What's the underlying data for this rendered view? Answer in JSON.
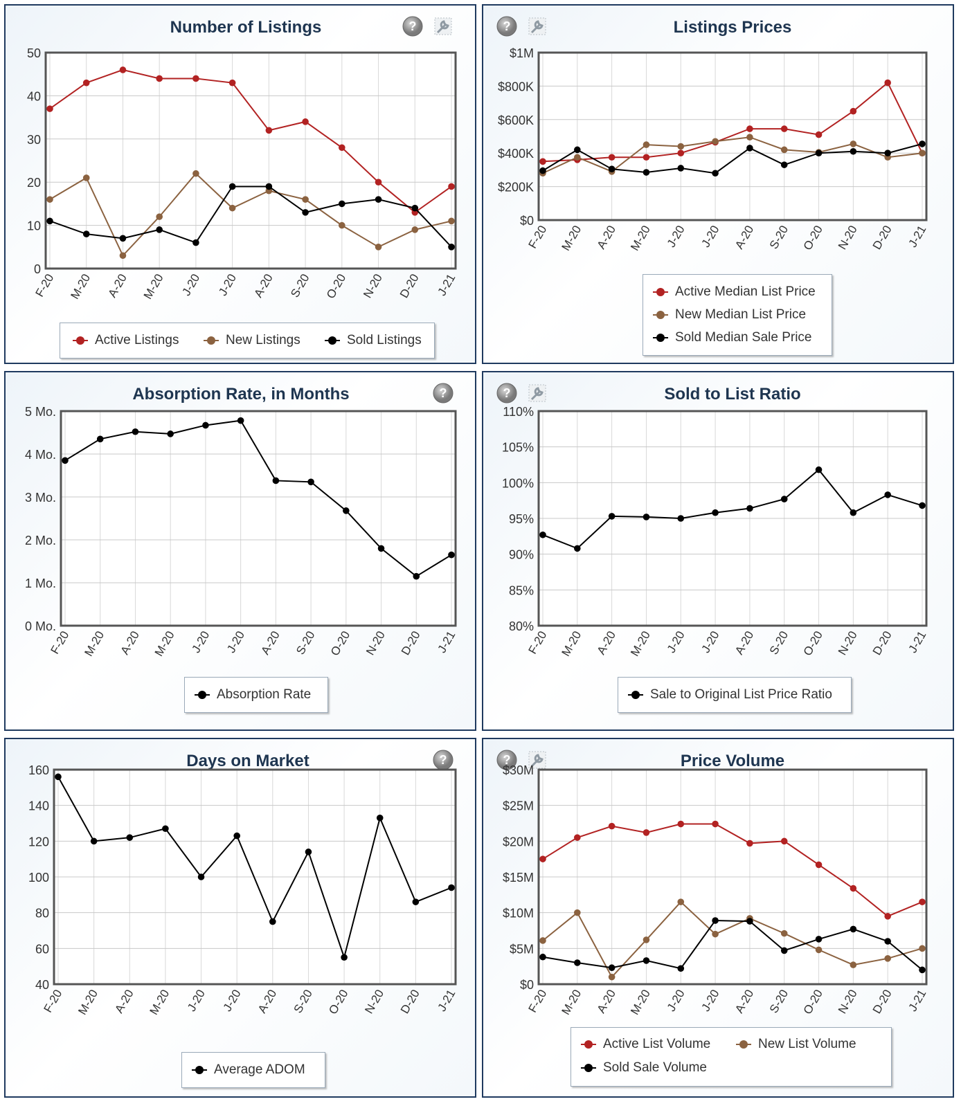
{
  "charts": {
    "listings": {
      "title": "Number of Listings",
      "chart_data": {
        "type": "line",
        "title": "Number of Listings",
        "categories": [
          "F-20",
          "M-20",
          "A-20",
          "M-20",
          "J-20",
          "J-20",
          "A-20",
          "S-20",
          "O-20",
          "N-20",
          "D-20",
          "J-21"
        ],
        "ylim": [
          0,
          50
        ],
        "yticks": [
          0,
          10,
          20,
          30,
          40,
          50
        ],
        "ytick_labels": [
          "0",
          "10",
          "20",
          "30",
          "40",
          "50"
        ],
        "grid": true,
        "legend": "bottom",
        "series": [
          {
            "name": "Active Listings",
            "color": "#b22222",
            "values": [
              37,
              43,
              46,
              44,
              44,
              43,
              32,
              34,
              28,
              20,
              13,
              19
            ]
          },
          {
            "name": "New Listings",
            "color": "#8b6240",
            "values": [
              16,
              21,
              3,
              12,
              22,
              14,
              18,
              16,
              10,
              5,
              9,
              11
            ]
          },
          {
            "name": "Sold Listings",
            "color": "#000000",
            "values": [
              11,
              8,
              7,
              9,
              6,
              19,
              19,
              13,
              15,
              16,
              14,
              5
            ]
          }
        ]
      }
    },
    "prices": {
      "title": "Listings Prices",
      "chart_data": {
        "type": "line",
        "title": "Listings Prices",
        "categories": [
          "F-20",
          "M-20",
          "A-20",
          "M-20",
          "J-20",
          "J-20",
          "A-20",
          "S-20",
          "O-20",
          "N-20",
          "D-20",
          "J-21"
        ],
        "ylim": [
          0,
          1000000
        ],
        "yticks": [
          0,
          200000,
          400000,
          600000,
          800000,
          1000000
        ],
        "ytick_labels": [
          "$0",
          "$200K",
          "$400K",
          "$600K",
          "$800K",
          "$1M"
        ],
        "grid": true,
        "legend": "bottom",
        "series": [
          {
            "name": "Active Median List Price",
            "color": "#b22222",
            "values": [
              350000,
              360000,
              375000,
              375000,
              400000,
              465000,
              545000,
              545000,
              510000,
              650000,
              820000,
              400000
            ]
          },
          {
            "name": "New Median List Price",
            "color": "#8b6240",
            "values": [
              280000,
              375000,
              290000,
              450000,
              440000,
              470000,
              495000,
              420000,
              405000,
              455000,
              375000,
              400000
            ]
          },
          {
            "name": "Sold Median Sale Price",
            "color": "#000000",
            "values": [
              295000,
              420000,
              305000,
              285000,
              310000,
              280000,
              430000,
              330000,
              400000,
              410000,
              400000,
              455000
            ]
          }
        ]
      }
    },
    "absorption": {
      "title": "Absorption Rate, in Months",
      "chart_data": {
        "type": "line",
        "title": "Absorption Rate, in Months",
        "categories": [
          "F-20",
          "M-20",
          "A-20",
          "M-20",
          "J-20",
          "J-20",
          "A-20",
          "S-20",
          "O-20",
          "N-20",
          "D-20",
          "J-21"
        ],
        "ylim": [
          0,
          5
        ],
        "yticks": [
          0,
          1,
          2,
          3,
          4,
          5
        ],
        "ytick_labels": [
          "0 Mo.",
          "1 Mo.",
          "2 Mo.",
          "3 Mo.",
          "4 Mo.",
          "5 Mo."
        ],
        "grid": true,
        "legend": "bottom",
        "series": [
          {
            "name": "Absorption Rate",
            "color": "#000000",
            "values": [
              3.85,
              4.35,
              4.52,
              4.47,
              4.67,
              4.78,
              3.38,
              3.35,
              2.68,
              1.8,
              1.15,
              1.65
            ]
          }
        ]
      }
    },
    "ratio": {
      "title": "Sold to List Ratio",
      "chart_data": {
        "type": "line",
        "title": "Sold to List Ratio",
        "categories": [
          "F-20",
          "M-20",
          "A-20",
          "M-20",
          "J-20",
          "J-20",
          "A-20",
          "S-20",
          "O-20",
          "N-20",
          "D-20",
          "J-21"
        ],
        "ylim": [
          80,
          110
        ],
        "yticks": [
          80,
          85,
          90,
          95,
          100,
          105,
          110
        ],
        "ytick_labels": [
          "80%",
          "85%",
          "90%",
          "95%",
          "100%",
          "105%",
          "110%"
        ],
        "grid": true,
        "legend": "bottom",
        "series": [
          {
            "name": "Sale to Original List Price Ratio",
            "color": "#000000",
            "values": [
              92.7,
              90.8,
              95.3,
              95.2,
              95.0,
              95.8,
              96.4,
              97.7,
              101.8,
              95.8,
              98.3,
              96.8
            ]
          }
        ]
      }
    },
    "dom": {
      "title": "Days on Market",
      "chart_data": {
        "type": "line",
        "title": "Days on Market",
        "categories": [
          "F-20",
          "M-20",
          "A-20",
          "M-20",
          "J-20",
          "J-20",
          "A-20",
          "S-20",
          "O-20",
          "N-20",
          "D-20",
          "J-21"
        ],
        "ylim": [
          40,
          160
        ],
        "yticks": [
          40,
          60,
          80,
          100,
          120,
          140,
          160
        ],
        "ytick_labels": [
          "40",
          "60",
          "80",
          "100",
          "120",
          "140",
          "160"
        ],
        "grid": true,
        "legend": "bottom",
        "series": [
          {
            "name": "Average ADOM",
            "color": "#000000",
            "values": [
              156,
              120,
              122,
              127,
              100,
              123,
              75,
              114,
              55,
              133,
              86,
              94
            ]
          }
        ]
      }
    },
    "volume": {
      "title": "Price Volume",
      "chart_data": {
        "type": "line",
        "title": "Price Volume",
        "categories": [
          "F-20",
          "M-20",
          "A-20",
          "M-20",
          "J-20",
          "J-20",
          "A-20",
          "S-20",
          "O-20",
          "N-20",
          "D-20",
          "J-21"
        ],
        "ylim": [
          0,
          30000000
        ],
        "yticks": [
          0,
          5000000,
          10000000,
          15000000,
          20000000,
          25000000,
          30000000
        ],
        "ytick_labels": [
          "$0",
          "$5M",
          "$10M",
          "$15M",
          "$20M",
          "$25M",
          "$30M"
        ],
        "grid": true,
        "legend": "bottom",
        "series": [
          {
            "name": "Active List Volume",
            "color": "#b22222",
            "values": [
              17500000.0,
              20500000.0,
              22100000.0,
              21200000.0,
              22400000.0,
              22400000.0,
              19700000.0,
              20000000.0,
              16700000.0,
              13400000.0,
              9500000.0,
              11500000.0
            ]
          },
          {
            "name": "New List Volume",
            "color": "#8b6240",
            "values": [
              6100000.0,
              10000000.0,
              1000000.0,
              6200000.0,
              11500000.0,
              7000000.0,
              9200000.0,
              7100000.0,
              4800000.0,
              2700000.0,
              3600000.0,
              5000000.0
            ]
          },
          {
            "name": "Sold Sale Volume",
            "color": "#000000",
            "values": [
              3800000.0,
              3000000.0,
              2300000.0,
              3300000.0,
              2200000.0,
              8900000.0,
              8800000.0,
              4700000.0,
              6300000.0,
              7700000.0,
              6000000.0,
              2000000.0
            ]
          }
        ]
      }
    }
  },
  "icons": {
    "help": "help-icon",
    "settings": "wrench-settings-icon"
  }
}
